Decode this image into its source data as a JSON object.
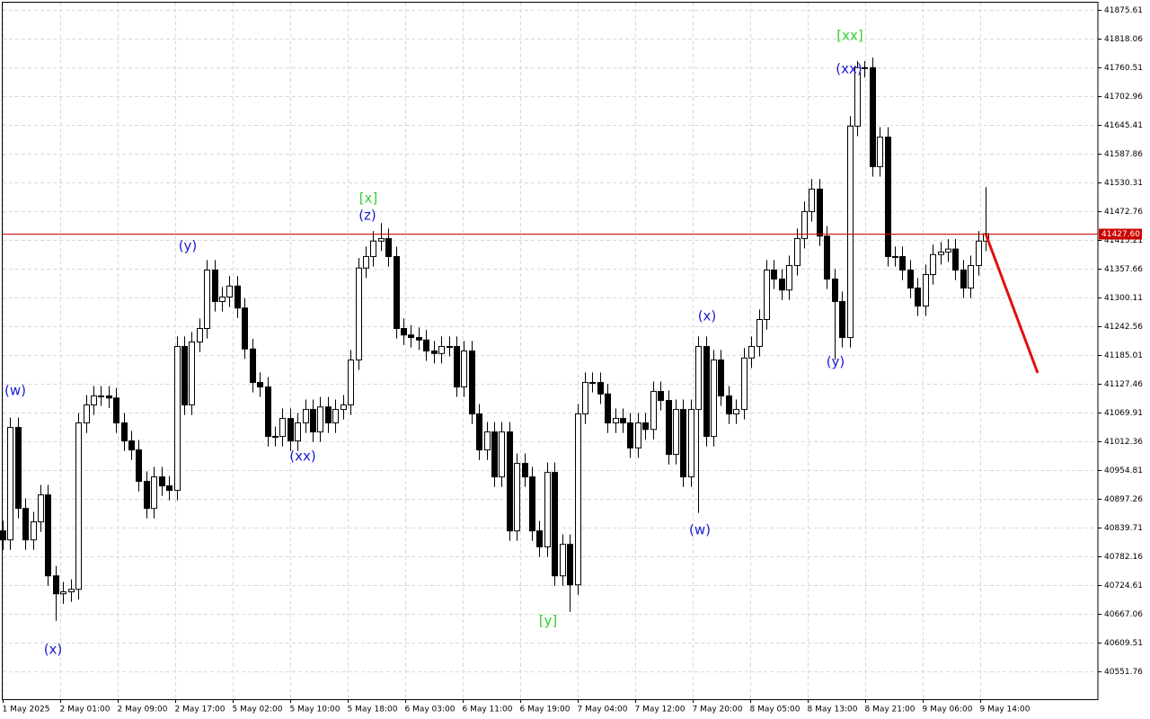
{
  "chart_data": {
    "type": "candlestick",
    "grid": true,
    "up_color": "#ffffff",
    "down_color": "#000000",
    "grid_color": "#d9d9d9",
    "price_line_color": "#cc0000",
    "ylim": [
      40496.1,
      41890
    ],
    "yticks": [
      41875.61,
      41818.06,
      41760.51,
      41702.96,
      41645.41,
      41587.86,
      41530.31,
      41472.76,
      41415.21,
      41357.66,
      41300.11,
      41242.56,
      41185.01,
      41127.46,
      41069.91,
      41012.36,
      40954.81,
      40897.26,
      40839.71,
      40782.16,
      40724.61,
      40667.06,
      40609.51,
      40551.76
    ],
    "xlabels": [
      "1 May 2025",
      "2 May 01:00",
      "2 May 09:00",
      "2 May 17:00",
      "5 May 02:00",
      "5 May 10:00",
      "5 May 18:00",
      "6 May 03:00",
      "6 May 11:00",
      "6 May 19:00",
      "7 May 04:00",
      "7 May 12:00",
      "7 May 20:00",
      "8 May 05:00",
      "8 May 13:00",
      "8 May 21:00",
      "9 May 06:00",
      "9 May 14:00"
    ],
    "current_price": {
      "value": 41427.6,
      "label": "41427.60"
    },
    "annotations": [
      {
        "text": "(w)",
        "color": "#1a1ad6"
      },
      {
        "text": "(x)",
        "color": "#1a1ad6"
      },
      {
        "text": "(y)",
        "color": "#1a1ad6"
      },
      {
        "text": "(xx)",
        "color": "#1a1ad6"
      },
      {
        "text": "[x]",
        "color": "#33cc33"
      },
      {
        "text": "(z)",
        "color": "#1a1ad6"
      },
      {
        "text": "[y]",
        "color": "#33cc33"
      },
      {
        "text": "(w)",
        "color": "#1a1ad6"
      },
      {
        "text": "(x)",
        "color": "#1a1ad6"
      },
      {
        "text": "(y)",
        "color": "#1a1ad6"
      },
      {
        "text": "(xx)",
        "color": "#1a1ad6"
      },
      {
        "text": "[xx]",
        "color": "#33cc33"
      }
    ],
    "open": [
      40833,
      40815,
      41040,
      40878,
      40815,
      40851,
      40905,
      40743,
      40707,
      40711,
      40716,
      41049,
      41085,
      41103,
      41103,
      41099,
      41049,
      41013,
      40995,
      40932,
      40878,
      40941,
      40923,
      40914,
      41202,
      41085,
      41211,
      41238,
      41355,
      41292,
      41301,
      41323,
      41279,
      41197,
      41130,
      41121,
      41022,
      41022,
      41058,
      41013,
      41049,
      41076,
      41031,
      41081,
      41049,
      41076,
      41085,
      41175,
      41359,
      41382,
      41413,
      41418,
      41382,
      41238,
      41225,
      41220,
      41215,
      41193,
      41188,
      41202,
      41202,
      41121,
      41193,
      41067,
      40995,
      41031,
      40941,
      41031,
      40833,
      40968,
      40941,
      40833,
      40801,
      40950,
      40743,
      40806,
      40725,
      41067,
      41130,
      41130,
      41107,
      41049,
      41058,
      41049,
      40999,
      41049,
      41036,
      41112,
      41094,
      40986,
      41076,
      40941,
      41076,
      41202,
      41022,
      41175,
      41103,
      41067,
      41076,
      41179,
      41202,
      41256,
      41355,
      41337,
      41315,
      41364,
      41418,
      41472,
      41517,
      41423,
      41337,
      41292,
      41220,
      41643,
      41760,
      41760,
      41562,
      41621,
      41382,
      41382,
      41355,
      41319,
      41283,
      41346,
      41386,
      41391,
      41397,
      41355,
      41319,
      41364,
      41413
    ],
    "high": [
      40853,
      41060,
      41060,
      40898,
      40871,
      40925,
      40925,
      40763,
      40731,
      40736,
      41069,
      41105,
      41123,
      41123,
      41123,
      41119,
      41069,
      41033,
      41015,
      40952,
      40961,
      40961,
      40943,
      41222,
      41222,
      41231,
      41258,
      41375,
      41375,
      41321,
      41343,
      41343,
      41299,
      41217,
      41150,
      41141,
      41042,
      41078,
      41078,
      41069,
      41096,
      41096,
      41101,
      41101,
      41096,
      41105,
      41195,
      41379,
      41402,
      41433,
      41449,
      41438,
      41402,
      41258,
      41245,
      41240,
      41235,
      41213,
      41222,
      41222,
      41222,
      41213,
      41213,
      41087,
      41051,
      41051,
      41051,
      41051,
      40988,
      40988,
      40961,
      40853,
      40970,
      40970,
      40826,
      40826,
      41087,
      41150,
      41150,
      41150,
      41127,
      41078,
      41078,
      41069,
      41069,
      41069,
      41132,
      41132,
      41114,
      41096,
      41096,
      41096,
      41222,
      41222,
      41195,
      41195,
      41123,
      41096,
      41199,
      41222,
      41276,
      41375,
      41375,
      41357,
      41384,
      41438,
      41492,
      41537,
      41537,
      41443,
      41357,
      41312,
      41663,
      41773,
      41773,
      41780,
      41641,
      41641,
      41402,
      41402,
      41375,
      41339,
      41366,
      41406,
      41411,
      41417,
      41417,
      41375,
      41384,
      41433,
      41521
    ],
    "low": [
      40795,
      40795,
      40858,
      40795,
      40795,
      40831,
      40723,
      40653,
      40687,
      40691,
      40696,
      41029,
      41065,
      41083,
      41079,
      41029,
      40993,
      40975,
      40912,
      40858,
      40858,
      40903,
      40894,
      40894,
      41065,
      41065,
      41191,
      41218,
      41272,
      41272,
      41281,
      41259,
      41177,
      41110,
      41101,
      41002,
      41002,
      41002,
      40993,
      40993,
      41029,
      41011,
      41011,
      41029,
      41029,
      41056,
      41065,
      41155,
      41339,
      41362,
      41393,
      41362,
      41218,
      41205,
      41200,
      41195,
      41173,
      41168,
      41168,
      41182,
      41101,
      41101,
      41047,
      40975,
      40975,
      40921,
      40921,
      40813,
      40813,
      40921,
      40813,
      40781,
      40781,
      40723,
      40723,
      40671,
      40705,
      41047,
      41110,
      41087,
      41029,
      41029,
      41029,
      40979,
      40979,
      41016,
      41016,
      41074,
      40966,
      40966,
      40921,
      40921,
      40869,
      41002,
      41002,
      41083,
      41047,
      41047,
      41056,
      41159,
      41182,
      41236,
      41317,
      41295,
      41295,
      41344,
      41398,
      41452,
      41403,
      41317,
      41175,
      41200,
      41200,
      41623,
      41740,
      41542,
      41542,
      41362,
      41362,
      41335,
      41299,
      41263,
      41263,
      41326,
      41366,
      41371,
      41335,
      41299,
      41299,
      41344,
      41393
    ],
    "close": [
      40815,
      41040,
      40878,
      40815,
      40851,
      40905,
      40743,
      40707,
      40711,
      40716,
      41049,
      41085,
      41103,
      41103,
      41099,
      41049,
      41013,
      40995,
      40932,
      40878,
      40941,
      40923,
      40914,
      41202,
      41085,
      41211,
      41238,
      41355,
      41292,
      41301,
      41323,
      41279,
      41197,
      41130,
      41121,
      41022,
      41022,
      41058,
      41013,
      41049,
      41076,
      41031,
      41081,
      41049,
      41076,
      41085,
      41175,
      41359,
      41382,
      41413,
      41418,
      41382,
      41238,
      41225,
      41220,
      41215,
      41193,
      41188,
      41202,
      41202,
      41121,
      41193,
      41067,
      40995,
      41031,
      40941,
      41031,
      40833,
      40968,
      40941,
      40833,
      40801,
      40950,
      40743,
      40806,
      40725,
      41067,
      41130,
      41130,
      41107,
      41049,
      41058,
      41049,
      40999,
      41049,
      41036,
      41112,
      41094,
      40986,
      41076,
      40941,
      41076,
      41202,
      41022,
      41175,
      41103,
      41067,
      41076,
      41179,
      41202,
      41256,
      41355,
      41337,
      41315,
      41364,
      41418,
      41472,
      41517,
      41423,
      41337,
      41292,
      41220,
      41643,
      41760,
      41760,
      41562,
      41621,
      41382,
      41382,
      41355,
      41319,
      41283,
      41346,
      41386,
      41391,
      41397,
      41355,
      41319,
      41364,
      41413,
      41427.6
    ]
  }
}
